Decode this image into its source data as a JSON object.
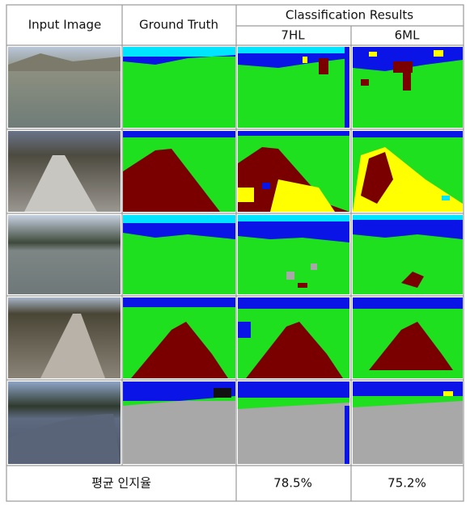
{
  "table": {
    "header": {
      "input": "Input Image",
      "truth": "Ground Truth",
      "results": "Classification Results",
      "methods": [
        "7HL",
        "6ML"
      ]
    },
    "footer": {
      "label": "평균 인지율",
      "values": [
        "78.5%",
        "75.2%"
      ]
    }
  }
}
